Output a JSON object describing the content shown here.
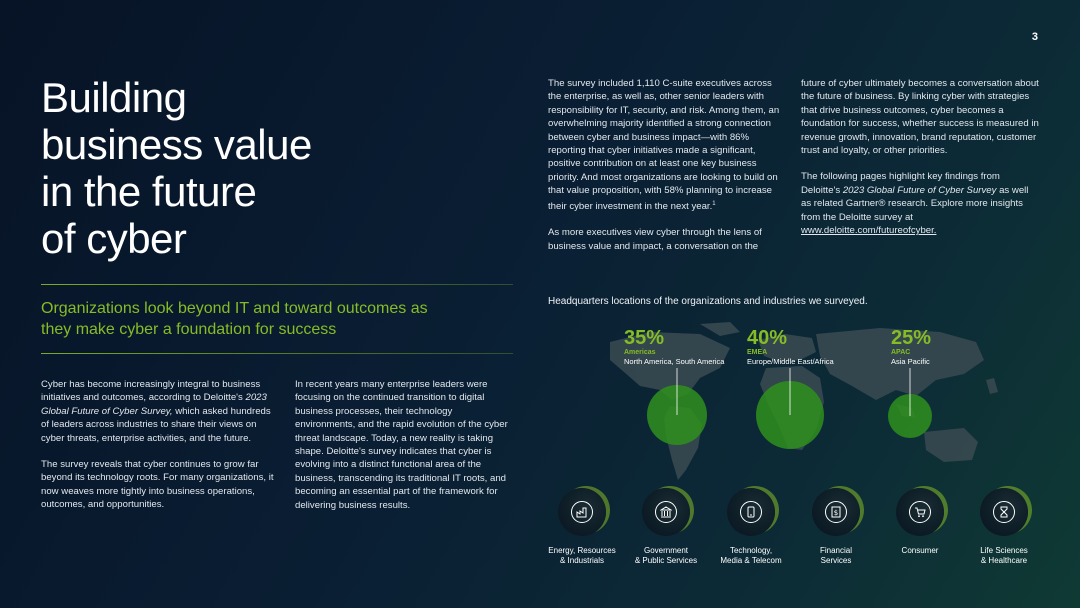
{
  "page_number": "3",
  "title_lines": [
    "Building",
    "business value",
    "in the future",
    "of cyber"
  ],
  "subtitle": "Organizations look beyond IT and toward outcomes as they make cyber a foundation for success",
  "left_col": {
    "p1_a": "Cyber has become increasingly integral to business initiatives and outcomes, according to Deloitte's ",
    "p1_em": "2023 Global Future of Cyber Survey,",
    "p1_b": " which asked hundreds of leaders across industries to share their views on cyber threats, enterprise activities, and the future.",
    "p2": "The survey reveals that cyber continues to grow far beyond its technology roots. For many organizations, it now weaves more tightly into business operations, outcomes, and opportunities."
  },
  "mid_col": {
    "p1": "In recent years many enterprise leaders were focusing on the continued transition to digital business processes, their technology environments, and the rapid evolution of the cyber threat landscape. Today, a new reality is taking shape. Deloitte's survey indicates that cyber is evolving into a distinct functional area of the business, transcending its traditional IT roots, and becoming an essential part of the framework for delivering business results."
  },
  "right_col1": {
    "p1": "The survey included 1,110 C-suite executives across the enterprise, as well as, other senior leaders with responsibility for IT, security, and risk. Among them, an overwhelming majority identified a strong connection between cyber and business impact—with 86% reporting that cyber initiatives made a significant, positive contribution on at least one key business priority. And most organizations are looking to build on that value proposition, with 58% planning to increase their cyber investment in the next year.",
    "p1_sup": "1",
    "p2": "As more executives view cyber through the lens of business value and impact, a conversation on the"
  },
  "right_col2": {
    "p1": "future of cyber ultimately becomes a conversation about the future of business. By linking cyber with strategies that drive business outcomes, cyber becomes a foundation for success, whether success is measured in revenue growth, innovation, brand reputation, customer trust and loyalty, or other priorities.",
    "p2_a": "The following pages highlight key findings from Deloitte's ",
    "p2_em": "2023 Global Future of Cyber Survey",
    "p2_b": " as well as related Gartner® research. Explore more insights from the Deloitte survey at ",
    "p2_link": "www.deloitte.com/futureofcyber."
  },
  "map": {
    "heading": "Headquarters locations of the organizations and industries we surveyed.",
    "regions": [
      {
        "pct": "35%",
        "name": "Americas",
        "desc": "North America, South America"
      },
      {
        "pct": "40%",
        "name": "EMEA",
        "desc": "Europe/Middle East/Africa"
      },
      {
        "pct": "25%",
        "name": "APAC",
        "desc": "Asia Pacific"
      }
    ]
  },
  "industries": [
    {
      "line1": "Energy, Resources",
      "line2": "& Industrials",
      "icon": "industry-icon"
    },
    {
      "line1": "Government",
      "line2": "& Public Services",
      "icon": "government-icon"
    },
    {
      "line1": "Technology,",
      "line2": "Media & Telecom",
      "icon": "technology-icon"
    },
    {
      "line1": "Financial",
      "line2": "Services",
      "icon": "financial-icon"
    },
    {
      "line1": "Consumer",
      "line2": "",
      "icon": "cart-icon"
    },
    {
      "line1": "Life Sciences",
      "line2": "& Healthcare",
      "icon": "hourglass-icon"
    }
  ],
  "colors": {
    "accent": "#86bc25",
    "background": "#071326"
  }
}
